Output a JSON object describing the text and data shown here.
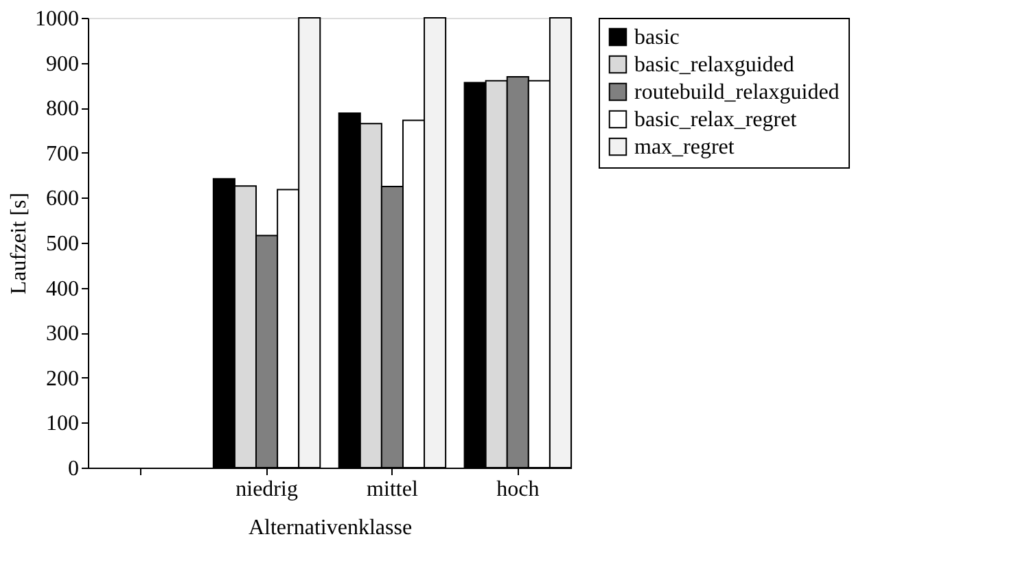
{
  "chart_data": {
    "type": "bar",
    "xlabel": "Alternativenklasse",
    "ylabel": "Laufzeit [s]",
    "categories": [
      null,
      "niedrig",
      "mittel",
      "hoch"
    ],
    "series": [
      {
        "name": "basic",
        "color": "#000000",
        "values": [
          null,
          642,
          788,
          856
        ]
      },
      {
        "name": "basic_relaxguided",
        "color": "#d9d9d9",
        "values": [
          null,
          626,
          765,
          860
        ]
      },
      {
        "name": "routebuild_relaxguided",
        "color": "#808080",
        "values": [
          null,
          516,
          625,
          869
        ]
      },
      {
        "name": "basic_relax_regret",
        "color": "#ffffff",
        "values": [
          null,
          618,
          772,
          860
        ]
      },
      {
        "name": "max_regret",
        "color": "#f2f2f2",
        "values": [
          null,
          1000,
          1000,
          1000
        ]
      }
    ],
    "ylim": [
      0,
      1000
    ],
    "yticks": [
      0,
      100,
      200,
      300,
      400,
      500,
      600,
      700,
      800,
      900,
      1000
    ],
    "grid": false,
    "legend": "right"
  }
}
